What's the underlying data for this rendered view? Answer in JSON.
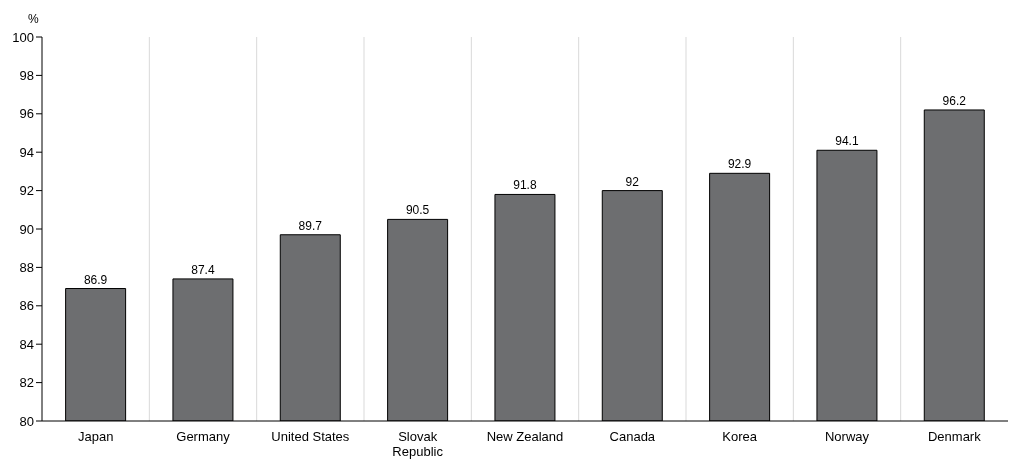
{
  "chart_data": {
    "type": "bar",
    "ylabel": "%",
    "categories": [
      "Japan",
      "Germany",
      "United States",
      "Slovak Republic",
      "New Zealand",
      "Canada",
      "Korea",
      "Norway",
      "Denmark"
    ],
    "values": [
      86.9,
      87.4,
      89.7,
      90.5,
      91.8,
      92,
      92.9,
      94.1,
      96.2
    ],
    "color": "#6d6e70",
    "ylim": [
      80,
      100
    ],
    "yticks": [
      80,
      82,
      84,
      86,
      88,
      90,
      92,
      94,
      96,
      98,
      100
    ],
    "grid": "x",
    "data_labels": true
  }
}
